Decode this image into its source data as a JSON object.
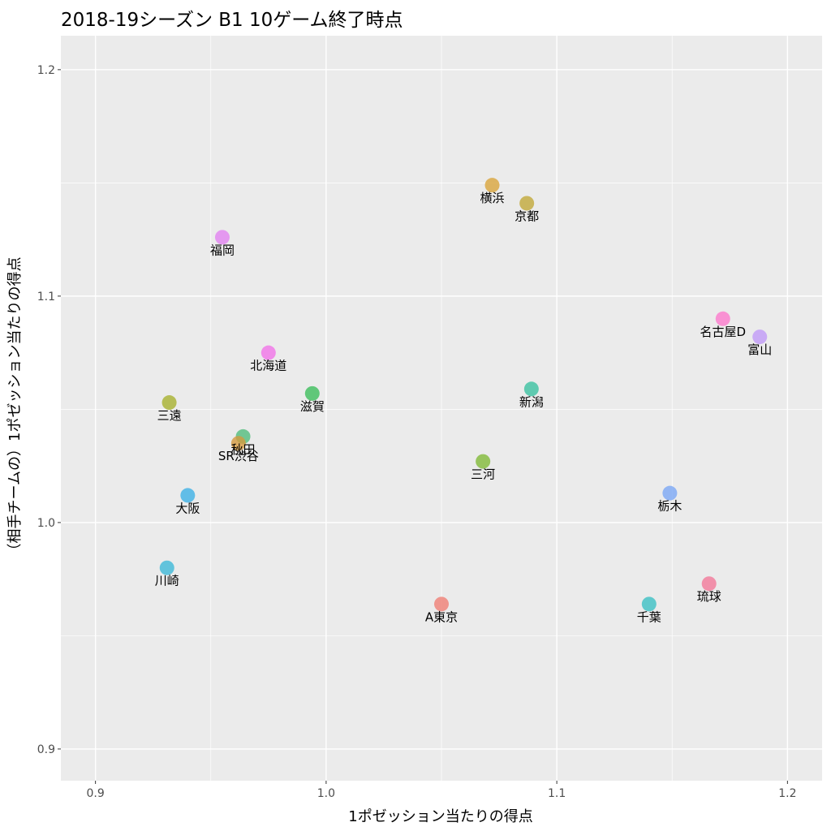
{
  "chart_data": {
    "type": "scatter",
    "title": "2018-19シーズン B1 10ゲーム終了時点",
    "xlabel": "1ポゼッション当たりの得点",
    "ylabel": "（相手チームの）1ポゼッション当たりの得点",
    "xlim": [
      0.885,
      1.215
    ],
    "ylim": [
      0.886,
      1.215
    ],
    "x_ticks": [
      0.9,
      1.0,
      1.1,
      1.2
    ],
    "x_tick_labels": [
      "0.9",
      "1.0",
      "1.1",
      "1.2"
    ],
    "y_ticks": [
      0.9,
      1.0,
      1.1,
      1.2
    ],
    "y_tick_labels": [
      "0.9",
      "1.0",
      "1.1",
      "1.2"
    ],
    "grid": true,
    "legend": "none",
    "points": [
      {
        "label": "横浜",
        "x": 1.072,
        "y": 1.149,
        "color": "#D9A53C"
      },
      {
        "label": "京都",
        "x": 1.087,
        "y": 1.141,
        "color": "#C2A93A"
      },
      {
        "label": "福岡",
        "x": 0.955,
        "y": 1.126,
        "color": "#E283F1"
      },
      {
        "label": "名古屋D",
        "x": 1.172,
        "y": 1.09,
        "color": "#FC7ACD"
      },
      {
        "label": "富山",
        "x": 1.188,
        "y": 1.082,
        "color": "#C19AF8"
      },
      {
        "label": "北海道",
        "x": 0.975,
        "y": 1.075,
        "color": "#F174E8"
      },
      {
        "label": "新潟",
        "x": 1.089,
        "y": 1.059,
        "color": "#3CC2A1"
      },
      {
        "label": "滋賀",
        "x": 0.994,
        "y": 1.057,
        "color": "#3DBE5C"
      },
      {
        "label": "三遠",
        "x": 0.932,
        "y": 1.053,
        "color": "#A7B22F"
      },
      {
        "label": "秋田",
        "x": 0.964,
        "y": 1.038,
        "color": "#52BD7D"
      },
      {
        "label": "SR渋谷",
        "x": 0.962,
        "y": 1.035,
        "color": "#D59A3E"
      },
      {
        "label": "三河",
        "x": 1.068,
        "y": 1.027,
        "color": "#82BA38"
      },
      {
        "label": "栃木",
        "x": 1.149,
        "y": 1.013,
        "color": "#7CA8F5"
      },
      {
        "label": "大阪",
        "x": 0.94,
        "y": 1.012,
        "color": "#3EB2E6"
      },
      {
        "label": "川崎",
        "x": 0.931,
        "y": 0.98,
        "color": "#3FB9D8"
      },
      {
        "label": "琉球",
        "x": 1.166,
        "y": 0.973,
        "color": "#F3799A"
      },
      {
        "label": "A東京",
        "x": 1.05,
        "y": 0.964,
        "color": "#F07F75"
      },
      {
        "label": "千葉",
        "x": 1.14,
        "y": 0.964,
        "color": "#3CC1C4"
      }
    ]
  }
}
